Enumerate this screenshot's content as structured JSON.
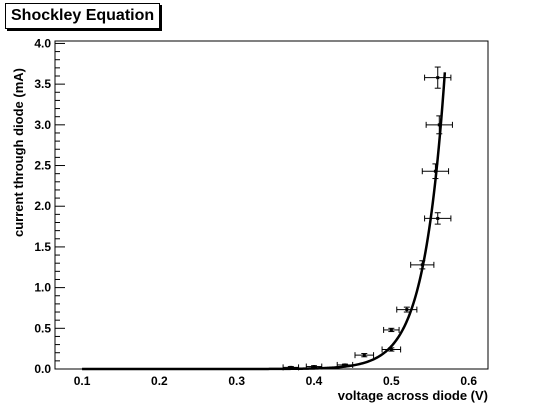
{
  "chart_data": {
    "type": "scatter",
    "title": "Shockley Equation",
    "xlabel": "voltage across diode (V)",
    "ylabel": "current through diode (mA)",
    "xlim": [
      0.065,
      0.625
    ],
    "ylim": [
      0.0,
      4.03
    ],
    "x_ticks": [
      0.1,
      0.2,
      0.3,
      0.4,
      0.5,
      0.6
    ],
    "x_tick_labels": [
      "0.1",
      "0.2",
      "0.3",
      "0.4",
      "0.5",
      "0.6"
    ],
    "y_ticks": [
      0.0,
      0.5,
      1.0,
      1.5,
      2.0,
      2.5,
      3.0,
      3.5,
      4.0
    ],
    "y_tick_labels": [
      "0.0",
      "0.5",
      "1.0",
      "1.5",
      "2.0",
      "2.5",
      "3.0",
      "3.5",
      "4.0"
    ],
    "grid": false,
    "legend": "none",
    "series": [
      {
        "kind": "points_with_error_bars",
        "points": [
          {
            "x": 0.37,
            "y": 0.02,
            "ex": 0.01,
            "ey": 0.01
          },
          {
            "x": 0.4,
            "y": 0.03,
            "ex": 0.01,
            "ey": 0.01
          },
          {
            "x": 0.44,
            "y": 0.05,
            "ex": 0.01,
            "ey": 0.01
          },
          {
            "x": 0.465,
            "y": 0.17,
            "ex": 0.012,
            "ey": 0.02
          },
          {
            "x": 0.5,
            "y": 0.24,
            "ex": 0.012,
            "ey": 0.02
          },
          {
            "x": 0.5,
            "y": 0.48,
            "ex": 0.01,
            "ey": 0.02
          },
          {
            "x": 0.52,
            "y": 0.73,
            "ex": 0.013,
            "ey": 0.03
          },
          {
            "x": 0.54,
            "y": 1.28,
            "ex": 0.015,
            "ey": 0.05
          },
          {
            "x": 0.56,
            "y": 1.85,
            "ex": 0.017,
            "ey": 0.07
          },
          {
            "x": 0.557,
            "y": 2.43,
            "ex": 0.017,
            "ey": 0.09
          },
          {
            "x": 0.562,
            "y": 3.0,
            "ex": 0.017,
            "ey": 0.11
          },
          {
            "x": 0.56,
            "y": 3.58,
            "ex": 0.017,
            "ey": 0.13
          }
        ]
      },
      {
        "kind": "fit_curve",
        "function": "I = Is*(exp(V/Vt)-1)",
        "Is_mA": 2.45e-09,
        "Vt_V": 0.02695,
        "x_range": [
          0.1,
          0.5692
        ]
      }
    ],
    "colors": {
      "axis": "#000000",
      "points": "#000000",
      "curve": "#000000",
      "background": "#ffffff"
    }
  }
}
